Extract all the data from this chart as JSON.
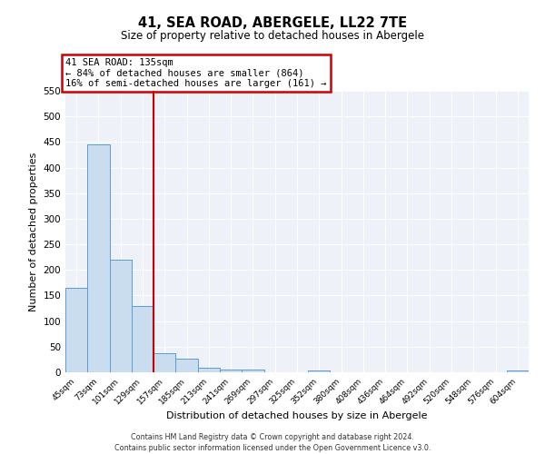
{
  "title": "41, SEA ROAD, ABERGELE, LL22 7TE",
  "subtitle": "Size of property relative to detached houses in Abergele",
  "xlabel": "Distribution of detached houses by size in Abergele",
  "ylabel": "Number of detached properties",
  "bar_color": "#c9ddef",
  "bar_edge_color": "#5b9bd5",
  "categories": [
    "45sqm",
    "73sqm",
    "101sqm",
    "129sqm",
    "157sqm",
    "185sqm",
    "213sqm",
    "241sqm",
    "269sqm",
    "297sqm",
    "325sqm",
    "352sqm",
    "380sqm",
    "408sqm",
    "436sqm",
    "464sqm",
    "492sqm",
    "520sqm",
    "548sqm",
    "576sqm",
    "604sqm"
  ],
  "values": [
    165,
    445,
    220,
    130,
    37,
    26,
    9,
    6,
    6,
    0,
    0,
    4,
    0,
    0,
    0,
    0,
    0,
    0,
    0,
    0,
    4
  ],
  "ylim": [
    0,
    550
  ],
  "yticks": [
    0,
    50,
    100,
    150,
    200,
    250,
    300,
    350,
    400,
    450,
    500,
    550
  ],
  "vline_pos": 3.5,
  "vline_color": "#cc0000",
  "annotation_text": "41 SEA ROAD: 135sqm\n← 84% of detached houses are smaller (864)\n16% of semi-detached houses are larger (161) →",
  "annotation_box_color": "#cc0000",
  "footer_line1": "Contains HM Land Registry data © Crown copyright and database right 2024.",
  "footer_line2": "Contains public sector information licensed under the Open Government Licence v3.0.",
  "background_color": "#eef2f8",
  "grid_color": "#ffffff",
  "fig_bg_color": "#ffffff"
}
